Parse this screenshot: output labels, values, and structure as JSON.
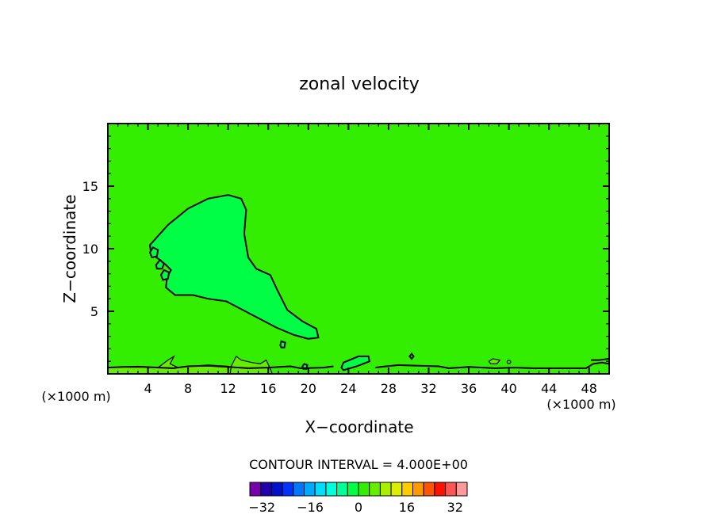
{
  "chart_data": {
    "type": "contour",
    "title": "zonal velocity",
    "xlabel": "X−coordinate",
    "ylabel": "Z−coordinate",
    "x_unit_label": "(×1000 m)",
    "x_unit_label_right": "(×1000 m)",
    "xlim": [
      0,
      50
    ],
    "ylim": [
      0,
      20
    ],
    "xticks": [
      4,
      8,
      12,
      16,
      20,
      24,
      28,
      32,
      36,
      40,
      44,
      48
    ],
    "yticks": [
      5,
      10,
      15
    ],
    "grid": false,
    "background_fill_color": "#33ee00",
    "contour_interval_text": "CONTOUR INTERVAL = 4.000E+00",
    "colorbar": {
      "levels": [
        -36,
        -32,
        -28,
        -24,
        -20,
        -16,
        -12,
        -8,
        -4,
        0,
        4,
        8,
        12,
        16,
        20,
        24,
        28,
        32,
        36
      ],
      "tick_values": [
        -32,
        -16,
        0,
        16,
        32
      ],
      "tick_labels": [
        "−32",
        "−16",
        "0",
        "16",
        "32"
      ],
      "colors": [
        "#7700aa",
        "#2200aa",
        "#0011cc",
        "#0033ff",
        "#0077ff",
        "#00aaff",
        "#00ddff",
        "#00ffdd",
        "#00ff99",
        "#00ff44",
        "#33ee00",
        "#66ee00",
        "#aaee00",
        "#ddee00",
        "#ffcc00",
        "#ff9900",
        "#ff5500",
        "#ff1100",
        "#ff5555",
        "#ff9999"
      ]
    },
    "regions": [
      {
        "name": "negative zonal velocity region",
        "value_range": [
          -4,
          0
        ],
        "fill": "#00ff44",
        "points": [
          [
            4.2,
            10.3
          ],
          [
            6,
            11.9
          ],
          [
            8,
            13.2
          ],
          [
            10,
            14
          ],
          [
            12,
            14.3
          ],
          [
            13.3,
            14
          ],
          [
            13.8,
            13.1
          ],
          [
            13.6,
            11.2
          ],
          [
            14,
            9.3
          ],
          [
            14.8,
            8.4
          ],
          [
            16.2,
            7.9
          ],
          [
            16.9,
            6.7
          ],
          [
            17.9,
            5.1
          ],
          [
            19.4,
            4.2
          ],
          [
            20.8,
            3.6
          ],
          [
            21,
            2.9
          ],
          [
            20,
            2.8
          ],
          [
            18.6,
            3.1
          ],
          [
            16.8,
            3.7
          ],
          [
            14.2,
            4.8
          ],
          [
            11.8,
            5.8
          ],
          [
            10,
            6
          ],
          [
            8.5,
            6.3
          ],
          [
            6.7,
            6.3
          ],
          [
            5.8,
            6.9
          ],
          [
            5.9,
            7.7
          ],
          [
            6.3,
            8.3
          ],
          [
            5.8,
            8.7
          ],
          [
            5.2,
            9.1
          ],
          [
            4.3,
            9.6
          ],
          [
            4.2,
            10.3
          ]
        ]
      },
      {
        "name": "small closed contour",
        "value_range": [
          -4,
          0
        ],
        "fill": "#00ff44",
        "points": [
          [
            4.2,
            9.7
          ],
          [
            4.5,
            10.1
          ],
          [
            5,
            9.9
          ],
          [
            4.9,
            9.4
          ],
          [
            4.4,
            9.3
          ],
          [
            4.2,
            9.7
          ]
        ]
      },
      {
        "name": "small closed contour",
        "value_range": [
          -4,
          0
        ],
        "fill": "#00ff44",
        "points": [
          [
            4.8,
            8.7
          ],
          [
            5.2,
            9.1
          ],
          [
            5.6,
            8.8
          ],
          [
            5.4,
            8.4
          ],
          [
            4.9,
            8.4
          ],
          [
            4.8,
            8.7
          ]
        ]
      },
      {
        "name": "small closed contour",
        "value_range": [
          -4,
          0
        ],
        "fill": "#00ff44",
        "points": [
          [
            5.3,
            7.9
          ],
          [
            5.6,
            8.3
          ],
          [
            6.1,
            8.1
          ],
          [
            6,
            7.6
          ],
          [
            5.5,
            7.5
          ],
          [
            5.3,
            7.9
          ]
        ]
      },
      {
        "name": "small closed contour",
        "value_range": [
          -4,
          0
        ],
        "fill": "#00ff44",
        "points": [
          [
            17.2,
            2.3
          ],
          [
            17.3,
            2.6
          ],
          [
            17.7,
            2.5
          ],
          [
            17.6,
            2.1
          ],
          [
            17.3,
            2.1
          ],
          [
            17.2,
            2.3
          ]
        ]
      },
      {
        "name": "small closed contour",
        "value_range": [
          -4,
          0
        ],
        "fill": "#00ff44",
        "points": [
          [
            19.4,
            0.6
          ],
          [
            19.6,
            0.8
          ],
          [
            19.9,
            0.7
          ],
          [
            19.8,
            0.4
          ],
          [
            19.5,
            0.4
          ],
          [
            19.4,
            0.6
          ]
        ]
      },
      {
        "name": "surface contour near x=25",
        "value_range": [
          -4,
          0
        ],
        "fill": "#00ff44",
        "points": [
          [
            23.3,
            0.5
          ],
          [
            23.5,
            0.9
          ],
          [
            25,
            1.4
          ],
          [
            26,
            1.4
          ],
          [
            26.1,
            1
          ],
          [
            24.8,
            0.6
          ],
          [
            23.5,
            0.3
          ],
          [
            23.3,
            0.5
          ]
        ]
      },
      {
        "name": "small closed contour",
        "value_range": [
          -4,
          0
        ],
        "fill": "#00ff44",
        "points": [
          [
            30.1,
            1.4
          ],
          [
            30.3,
            1.6
          ],
          [
            30.5,
            1.4
          ],
          [
            30.3,
            1.2
          ],
          [
            30.1,
            1.4
          ]
        ]
      }
    ],
    "bottom_bands": [
      {
        "name": "positive near-surface band",
        "value_range": [
          4,
          8
        ],
        "fill": "#66ee00",
        "points": [
          [
            0,
            0
          ],
          [
            0,
            0.5
          ],
          [
            3,
            0.6
          ],
          [
            5,
            0.5
          ],
          [
            6,
            1.1
          ],
          [
            6.6,
            1.4
          ],
          [
            6.2,
            0.8
          ],
          [
            7,
            0.5
          ],
          [
            8,
            0.6
          ],
          [
            10,
            0.7
          ],
          [
            12,
            0.6
          ],
          [
            12.8,
            0.4
          ],
          [
            13,
            0
          ],
          [
            0,
            0
          ]
        ]
      },
      {
        "name": "positive near-surface band",
        "value_range": [
          4,
          8
        ],
        "fill": "#66ee00",
        "points": [
          [
            12.2,
            0
          ],
          [
            12.3,
            0.6
          ],
          [
            12.8,
            1.4
          ],
          [
            13.3,
            1.1
          ],
          [
            14.4,
            0.9
          ],
          [
            15.2,
            0.8
          ],
          [
            15.8,
            1.1
          ],
          [
            16.2,
            0.4
          ],
          [
            16.4,
            0
          ],
          [
            12.2,
            0
          ]
        ]
      },
      {
        "name": "positive near-surface band",
        "value_range": [
          4,
          8
        ],
        "fill": "#66ee00",
        "points": [
          [
            38,
            1
          ],
          [
            38.4,
            1.2
          ],
          [
            39.1,
            1.1
          ],
          [
            38.8,
            0.8
          ],
          [
            38.2,
            0.8
          ],
          [
            38,
            1
          ]
        ]
      }
    ],
    "contour_lines": [
      {
        "name": "surface contour line",
        "value": 0,
        "points": [
          [
            0,
            0.5
          ],
          [
            1.5,
            0.55
          ],
          [
            3.5,
            0.55
          ],
          [
            6.5,
            0.45
          ],
          [
            8,
            0.6
          ],
          [
            10,
            0.65
          ],
          [
            12,
            0.55
          ],
          [
            14,
            0.45
          ],
          [
            16,
            0.5
          ],
          [
            18.2,
            0.6
          ],
          [
            19.2,
            0.45
          ],
          [
            21.5,
            0.5
          ],
          [
            22.5,
            0.6
          ]
        ]
      },
      {
        "name": "surface contour line",
        "value": 0,
        "points": [
          [
            26.7,
            0.5
          ],
          [
            27.2,
            0.55
          ],
          [
            29,
            0.7
          ],
          [
            31,
            0.65
          ],
          [
            33,
            0.6
          ],
          [
            34,
            0.45
          ],
          [
            35,
            0.5
          ],
          [
            36,
            0.55
          ],
          [
            38.6,
            0.45
          ],
          [
            40.5,
            0.5
          ],
          [
            42.5,
            0.45
          ],
          [
            45.6,
            0.45
          ],
          [
            47.7,
            0.45
          ],
          [
            48.4,
            0.8
          ],
          [
            49.3,
            0.9
          ],
          [
            50,
            0.8
          ]
        ]
      },
      {
        "name": "surface contour line",
        "value": 0,
        "points": [
          [
            48.2,
            1.1
          ],
          [
            49,
            1.1
          ],
          [
            50,
            1.2
          ]
        ]
      }
    ],
    "points": [
      {
        "name": "contour dot",
        "x": 40,
        "y": 0.95
      }
    ]
  }
}
